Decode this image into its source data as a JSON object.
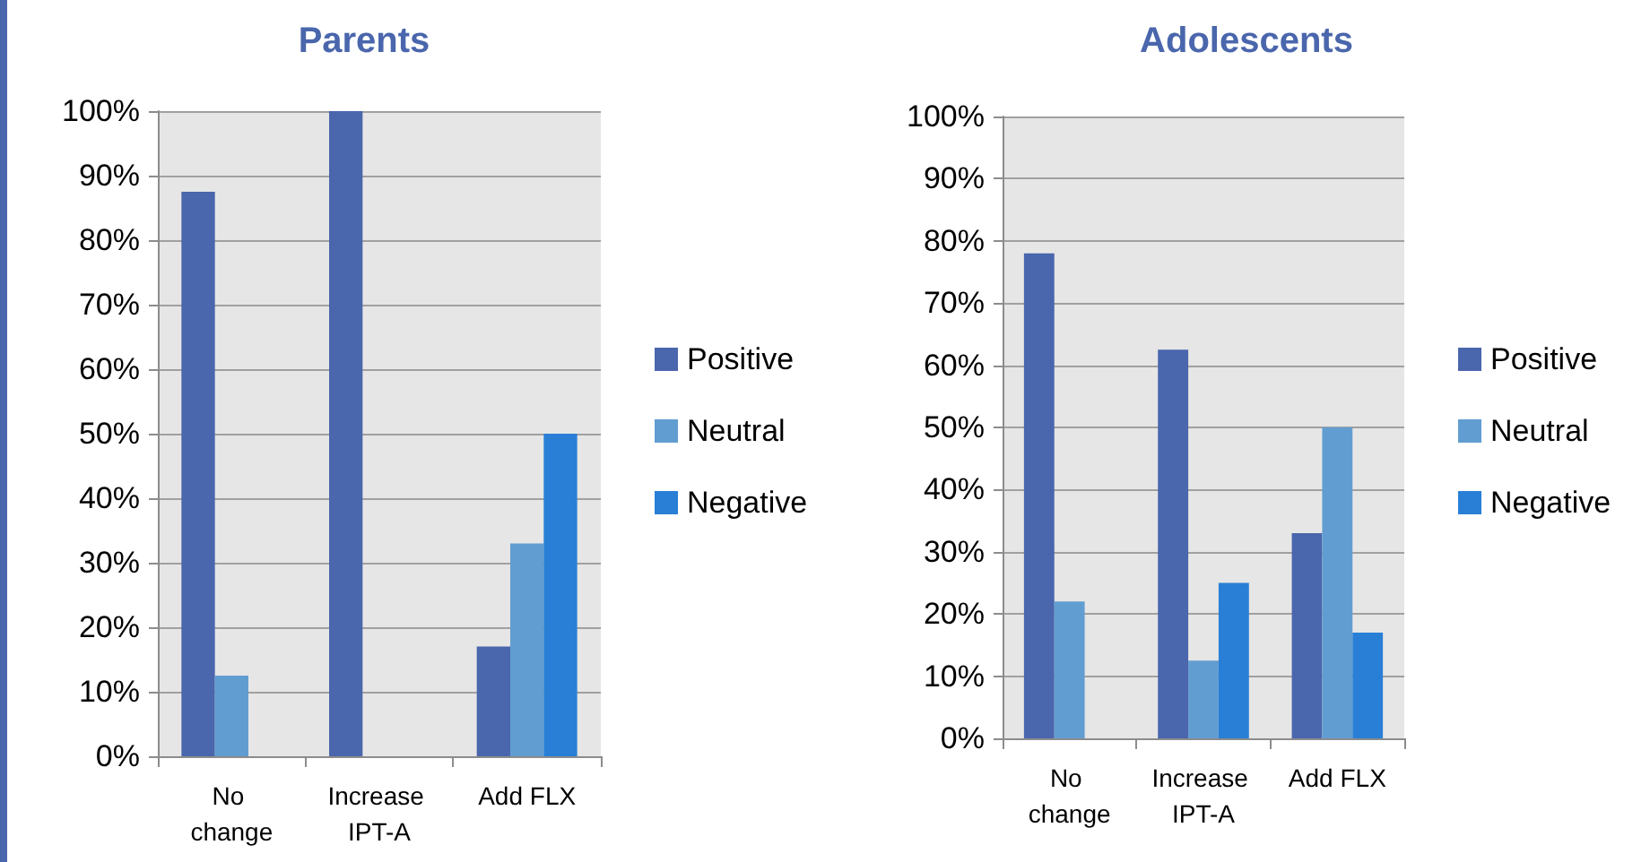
{
  "chart_data": [
    {
      "type": "bar",
      "title": "Parents",
      "categories": [
        "No change",
        "Increase IPT-A",
        "Add FLX"
      ],
      "series": [
        {
          "name": "Positive",
          "color": "#4a66ac",
          "values": [
            87.5,
            100,
            17
          ]
        },
        {
          "name": "Neutral",
          "color": "#629dd1",
          "values": [
            12.5,
            0,
            33
          ]
        },
        {
          "name": "Negative",
          "color": "#297fd5",
          "values": [
            0,
            0,
            50
          ]
        }
      ],
      "ylim": [
        0,
        100
      ],
      "yticks": [
        {
          "value": 0,
          "label": "0%"
        },
        {
          "value": 10,
          "label": "10%"
        },
        {
          "value": 20,
          "label": "20%"
        },
        {
          "value": 30,
          "label": "30%"
        },
        {
          "value": 40,
          "label": "40%"
        },
        {
          "value": 50,
          "label": "50%"
        },
        {
          "value": 60,
          "label": "60%"
        },
        {
          "value": 70,
          "label": "70%"
        },
        {
          "value": 80,
          "label": "80%"
        },
        {
          "value": 90,
          "label": "90%"
        },
        {
          "value": 100,
          "label": "100%"
        }
      ],
      "grid": "y",
      "legend": "right"
    },
    {
      "type": "bar",
      "title": "Adolescents",
      "categories": [
        "No change",
        "Increase IPT-A",
        "Add FLX"
      ],
      "series": [
        {
          "name": "Positive",
          "color": "#4a66ac",
          "values": [
            78,
            62.5,
            33
          ]
        },
        {
          "name": "Neutral",
          "color": "#629dd1",
          "values": [
            22,
            12.5,
            50
          ]
        },
        {
          "name": "Negative",
          "color": "#297fd5",
          "values": [
            0,
            25,
            17
          ]
        }
      ],
      "ylim": [
        0,
        100
      ],
      "yticks": [
        {
          "value": 0,
          "label": "0%"
        },
        {
          "value": 10,
          "label": "10%"
        },
        {
          "value": 20,
          "label": "20%"
        },
        {
          "value": 30,
          "label": "30%"
        },
        {
          "value": 40,
          "label": "40%"
        },
        {
          "value": 50,
          "label": "50%"
        },
        {
          "value": 60,
          "label": "60%"
        },
        {
          "value": 70,
          "label": "70%"
        },
        {
          "value": 80,
          "label": "80%"
        },
        {
          "value": 90,
          "label": "90%"
        },
        {
          "value": 100,
          "label": "100%"
        }
      ],
      "grid": "y",
      "legend": "right"
    }
  ]
}
